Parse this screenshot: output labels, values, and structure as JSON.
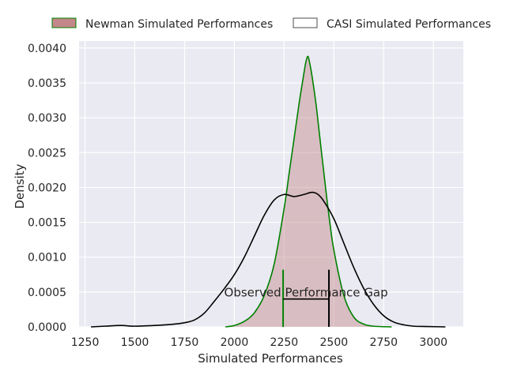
{
  "chart_data": {
    "type": "line",
    "title": "",
    "xlabel": "Simulated Performances",
    "ylabel": "Density",
    "xlim": [
      1220,
      3150
    ],
    "ylim": [
      0,
      0.0041
    ],
    "x_ticks": [
      {
        "value": 1250,
        "label": "1250"
      },
      {
        "value": 1500,
        "label": "1500"
      },
      {
        "value": 1750,
        "label": "1750"
      },
      {
        "value": 2000,
        "label": "2000"
      },
      {
        "value": 2250,
        "label": "2250"
      },
      {
        "value": 2500,
        "label": "2500"
      },
      {
        "value": 2750,
        "label": "2750"
      },
      {
        "value": 3000,
        "label": "3000"
      }
    ],
    "y_ticks": [
      {
        "value": 0.0,
        "label": "0.0000"
      },
      {
        "value": 0.0005,
        "label": "0.0005"
      },
      {
        "value": 0.001,
        "label": "0.0010"
      },
      {
        "value": 0.0015,
        "label": "0.0015"
      },
      {
        "value": 0.002,
        "label": "0.0020"
      },
      {
        "value": 0.0025,
        "label": "0.0025"
      },
      {
        "value": 0.003,
        "label": "0.0030"
      },
      {
        "value": 0.0035,
        "label": "0.0035"
      },
      {
        "value": 0.004,
        "label": "0.0040"
      }
    ],
    "grid": true,
    "legend_position": "top",
    "series": [
      {
        "name": "Newman Simulated Performances",
        "kind": "density-filled",
        "fill_color": "#c4878a",
        "line_color": "#008000",
        "points": [
          [
            1955,
            0.0
          ],
          [
            2000,
            2e-05
          ],
          [
            2050,
            8e-05
          ],
          [
            2100,
            0.0002
          ],
          [
            2150,
            0.00045
          ],
          [
            2200,
            0.0009
          ],
          [
            2250,
            0.0017
          ],
          [
            2275,
            0.0022
          ],
          [
            2300,
            0.0027
          ],
          [
            2325,
            0.0032
          ],
          [
            2350,
            0.00365
          ],
          [
            2360,
            0.00381
          ],
          [
            2368,
            0.00388
          ],
          [
            2375,
            0.00383
          ],
          [
            2390,
            0.0036
          ],
          [
            2410,
            0.0032
          ],
          [
            2430,
            0.0027
          ],
          [
            2450,
            0.0022
          ],
          [
            2475,
            0.0016
          ],
          [
            2500,
            0.0011
          ],
          [
            2550,
            0.00045
          ],
          [
            2600,
            0.00014
          ],
          [
            2650,
            4e-05
          ],
          [
            2700,
            1e-05
          ],
          [
            2790,
            0.0
          ]
        ]
      },
      {
        "name": "CASI Simulated Performances",
        "kind": "density-line",
        "fill_color": "none",
        "line_color": "#000000",
        "points": [
          [
            1280,
            0.0
          ],
          [
            1350,
            1e-05
          ],
          [
            1430,
            2e-05
          ],
          [
            1500,
            1e-05
          ],
          [
            1600,
            2e-05
          ],
          [
            1700,
            4e-05
          ],
          [
            1750,
            6e-05
          ],
          [
            1800,
            0.0001
          ],
          [
            1850,
            0.0002
          ],
          [
            1900,
            0.00037
          ],
          [
            1950,
            0.00055
          ],
          [
            2000,
            0.00075
          ],
          [
            2050,
            0.001
          ],
          [
            2100,
            0.0013
          ],
          [
            2150,
            0.0016
          ],
          [
            2200,
            0.00182
          ],
          [
            2250,
            0.0019
          ],
          [
            2300,
            0.00187
          ],
          [
            2350,
            0.0019
          ],
          [
            2390,
            0.00193
          ],
          [
            2420,
            0.0019
          ],
          [
            2450,
            0.0018
          ],
          [
            2500,
            0.00155
          ],
          [
            2550,
            0.0012
          ],
          [
            2600,
            0.00085
          ],
          [
            2650,
            0.00055
          ],
          [
            2700,
            0.00032
          ],
          [
            2750,
            0.00016
          ],
          [
            2800,
            7e-05
          ],
          [
            2850,
            3e-05
          ],
          [
            2900,
            1e-05
          ],
          [
            2970,
            5e-06
          ],
          [
            3060,
            0.0
          ]
        ]
      }
    ],
    "annotations": [
      {
        "kind": "vline",
        "x": 2245,
        "y_top": 0.00082,
        "color": "#008000"
      },
      {
        "kind": "vline",
        "x": 2475,
        "y_top": 0.00082,
        "color": "#000000"
      },
      {
        "kind": "hline",
        "x1": 2245,
        "x2": 2475,
        "y": 0.0004,
        "color": "#000000"
      },
      {
        "kind": "text",
        "text": "Observed Performance Gap",
        "x": 2360,
        "y": 0.00049
      }
    ]
  }
}
